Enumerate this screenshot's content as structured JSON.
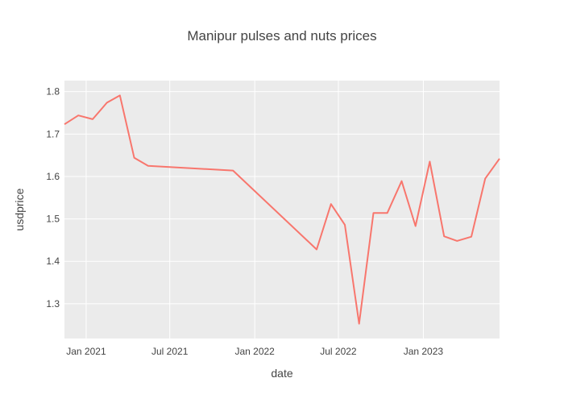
{
  "chart_data": {
    "type": "line",
    "title": "Manipur pulses and nuts prices",
    "xlabel": "date",
    "ylabel": "usdprice",
    "grid": true,
    "legend": "none",
    "x": [
      "2020-11-15",
      "2020-12-15",
      "2021-01-15",
      "2021-02-15",
      "2021-03-15",
      "2021-04-15",
      "2021-05-15",
      "2021-11-15",
      "2022-05-15",
      "2022-06-15",
      "2022-07-15",
      "2022-08-15",
      "2022-09-15",
      "2022-10-15",
      "2022-11-15",
      "2022-12-15",
      "2023-01-15",
      "2023-02-15",
      "2023-03-15",
      "2023-04-15",
      "2023-05-15",
      "2023-06-15"
    ],
    "series": [
      {
        "values": [
          1.723,
          1.744,
          1.735,
          1.774,
          1.791,
          1.644,
          1.625,
          1.614,
          1.428,
          1.535,
          1.486,
          1.253,
          1.514,
          1.514,
          1.589,
          1.483,
          1.635,
          1.459,
          1.448,
          1.458,
          1.595,
          1.642
        ],
        "color": "#f8766d"
      }
    ],
    "xlim": [
      "2020-11-15",
      "2023-06-15"
    ],
    "ylim": [
      1.218,
      1.826
    ],
    "x_ticks": [
      {
        "date": "2021-01-01",
        "label": "Jan 2021"
      },
      {
        "date": "2021-07-01",
        "label": "Jul 2021"
      },
      {
        "date": "2022-01-01",
        "label": "Jan 2022"
      },
      {
        "date": "2022-07-01",
        "label": "Jul 2022"
      },
      {
        "date": "2023-01-01",
        "label": "Jan 2023"
      }
    ],
    "y_ticks": [
      {
        "value": 1.3,
        "label": "1.3"
      },
      {
        "value": 1.4,
        "label": "1.4"
      },
      {
        "value": 1.5,
        "label": "1.5"
      },
      {
        "value": 1.6,
        "label": "1.6"
      },
      {
        "value": 1.7,
        "label": "1.7"
      },
      {
        "value": 1.8,
        "label": "1.8"
      }
    ]
  }
}
